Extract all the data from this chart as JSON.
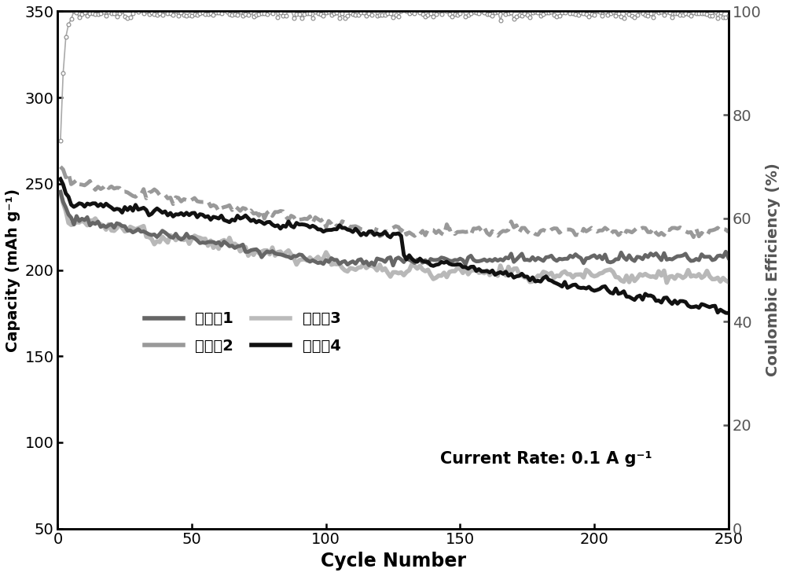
{
  "xlabel": "Cycle Number",
  "ylabel_left": "Capacity (mAh g⁻¹)",
  "ylabel_right": "Coulombic Efficiency (%)",
  "xlim": [
    0,
    250
  ],
  "ylim_left": [
    50,
    350
  ],
  "ylim_right": [
    0,
    100
  ],
  "yticks_left": [
    50,
    100,
    150,
    200,
    250,
    300,
    350
  ],
  "yticks_right": [
    0,
    20,
    40,
    60,
    80,
    100
  ],
  "xticks": [
    0,
    50,
    100,
    150,
    200,
    250
  ],
  "annotation": "Current Rate: 0.1 A g⁻¹",
  "legend_entries": [
    {
      "label": "实施例1",
      "color": "#666666",
      "lw": 3.0,
      "ls": "-"
    },
    {
      "label": "实施例2",
      "color": "#999999",
      "lw": 3.0,
      "ls": "-"
    },
    {
      "label": "实施例3",
      "color": "#bbbbbb",
      "lw": 3.0,
      "ls": "-"
    },
    {
      "label": "实施例4",
      "color": "#111111",
      "lw": 3.0,
      "ls": "-"
    }
  ],
  "background_color": "#ffffff",
  "figsize": [
    10.0,
    7.33
  ],
  "dpi": 100
}
